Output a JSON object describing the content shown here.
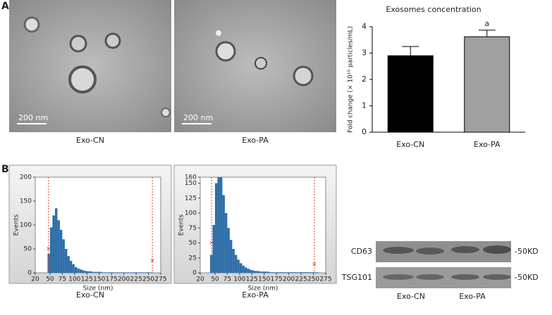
{
  "panel_labels": [
    "A",
    "B"
  ],
  "tem": [
    {
      "scale_bar": "200 nm",
      "caption": "Exo-CN"
    },
    {
      "scale_bar": "200 nm",
      "caption": "Exo-PA"
    }
  ],
  "chart_data": [
    {
      "type": "bar",
      "title": "Exosomes concentration",
      "y_label": "Fold change (× 10¹⁰ particles/mL)",
      "categories": [
        "Exo-CN",
        "Exo-PA"
      ],
      "values": [
        2.9,
        3.62
      ],
      "errors": [
        0.35,
        0.25
      ],
      "colors": [
        "#000000",
        "#a0a0a0"
      ],
      "annotation": "a",
      "ylim": [
        0,
        4
      ],
      "yticks": [
        0,
        1,
        2,
        3,
        4
      ]
    },
    {
      "type": "histogram",
      "caption": "Exo-CN",
      "x_label": "Size (nm)",
      "y_label": "Events",
      "color": "#2e6fa8",
      "marker_color": "#e8402a",
      "bins": [
        20,
        25,
        30,
        35,
        40,
        45,
        50,
        55,
        60,
        65,
        70,
        75,
        80,
        85,
        90,
        95,
        100,
        105,
        110,
        115,
        120,
        125,
        130,
        135,
        140,
        145,
        150,
        155,
        160,
        165,
        170,
        175,
        180,
        185,
        190,
        195,
        200,
        205,
        210,
        215,
        220,
        225,
        230,
        235,
        240,
        245,
        250,
        255,
        260,
        265,
        270,
        275
      ],
      "values": [
        0,
        0,
        0,
        0,
        0,
        40,
        95,
        120,
        135,
        110,
        90,
        70,
        50,
        35,
        25,
        18,
        12,
        9,
        7,
        5,
        4,
        3,
        3,
        2,
        2,
        2,
        2,
        1,
        1,
        1,
        1,
        1,
        1,
        1,
        1,
        1,
        1,
        1,
        1,
        1,
        1,
        1,
        1,
        1,
        1,
        1,
        1,
        1,
        0,
        0,
        0
      ],
      "gates": [
        {
          "x": 47,
          "y": 50
        },
        {
          "x": 258,
          "y": 25
        }
      ],
      "xlim": [
        20,
        275
      ],
      "xticks": [
        20,
        50,
        75,
        100,
        125,
        150,
        175,
        200,
        225,
        250,
        275
      ],
      "ylim": [
        0,
        200
      ],
      "yticks": [
        0,
        50,
        100,
        150,
        200
      ]
    },
    {
      "type": "histogram",
      "caption": "Exo-PA",
      "x_label": "Size (nm)",
      "y_label": "Events",
      "color": "#2e6fa8",
      "marker_color": "#e8402a",
      "bins": [
        20,
        25,
        30,
        35,
        40,
        45,
        50,
        55,
        60,
        65,
        70,
        75,
        80,
        85,
        90,
        95,
        100,
        105,
        110,
        115,
        120,
        125,
        130,
        135,
        140,
        145,
        150,
        155,
        160,
        165,
        170,
        175,
        180,
        185,
        190,
        195,
        200,
        205,
        210,
        215,
        220,
        225,
        230,
        235,
        240,
        245,
        250,
        255,
        260,
        265,
        270,
        275
      ],
      "values": [
        0,
        0,
        0,
        0,
        30,
        80,
        150,
        160,
        160,
        130,
        100,
        75,
        55,
        40,
        30,
        22,
        16,
        12,
        9,
        7,
        5,
        4,
        3,
        3,
        2,
        2,
        2,
        2,
        1,
        1,
        1,
        1,
        1,
        1,
        1,
        1,
        1,
        1,
        1,
        1,
        1,
        1,
        1,
        1,
        1,
        1,
        1,
        1,
        0,
        0,
        0
      ],
      "gates": [
        {
          "x": 43,
          "y": 50
        },
        {
          "x": 252,
          "y": 14
        }
      ],
      "xlim": [
        20,
        275
      ],
      "xticks": [
        20,
        50,
        75,
        100,
        125,
        150,
        175,
        200,
        225,
        250,
        275
      ],
      "ylim": [
        0,
        160
      ],
      "yticks": [
        0,
        25,
        50,
        75,
        100,
        125,
        150,
        160
      ]
    }
  ],
  "western_blot": {
    "rows": [
      "CD63",
      "TSG101"
    ],
    "sizes": [
      "-50KD",
      "-50KD"
    ],
    "lanes": [
      "Exo-CN",
      "Exo-PA"
    ]
  }
}
